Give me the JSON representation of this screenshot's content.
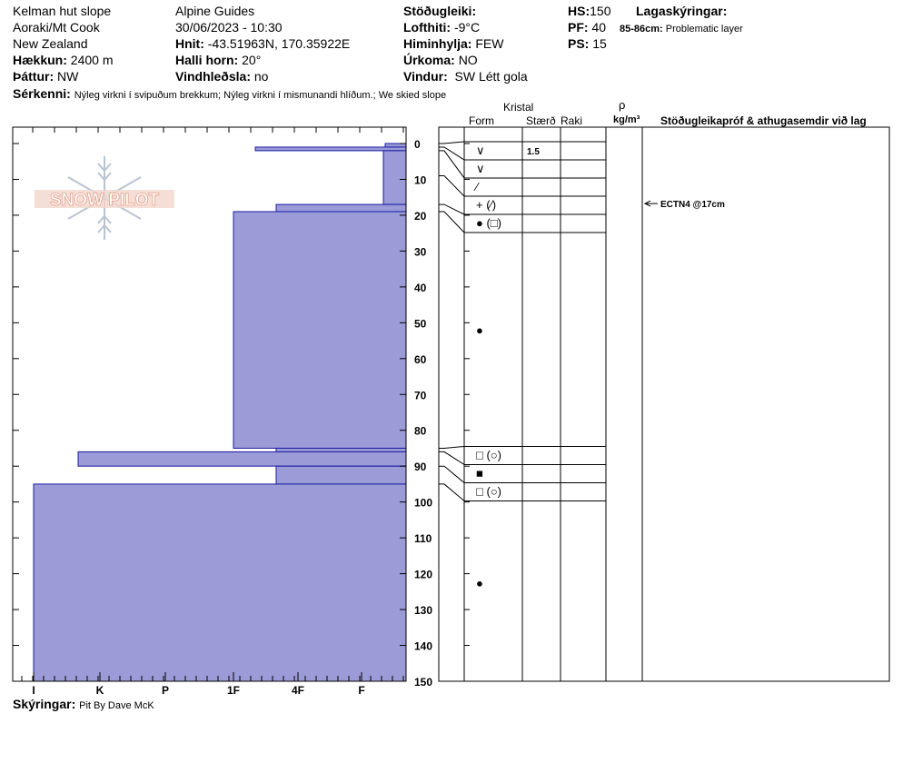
{
  "header": {
    "location": "Kelman hut slope",
    "region": "Aoraki/Mt Cook",
    "country": "New Zealand",
    "elevation_label": "Hækkun:",
    "elevation_value": "2400 m",
    "aspect_label": "Þáttur:",
    "aspect_value": "NW",
    "observer": "Alpine  Guides",
    "datetime": "30/06/2023 - 10:30",
    "coords_label": "Hnit:",
    "coords_value": "-43.51963N, 170.35922E",
    "slope_label": "Halli horn:",
    "slope_value": "20°",
    "wind_loading_label": "Vindhleðsla:",
    "wind_loading_value": "no",
    "stability_label": "Stöðugleiki:",
    "air_temp_label": "Lofthiti:",
    "air_temp_value": "-9°C",
    "sky_label": "Himinhylja:",
    "sky_value": "FEW",
    "precip_label": "Úrkoma:",
    "precip_value": "NO",
    "wind_label": "Vindur:",
    "wind_value": "SW Létt gola",
    "hs_label": "HS:",
    "hs_value": "150",
    "pf_label": "PF:",
    "pf_value": "40",
    "ps_label": "PS:",
    "ps_value": "15",
    "layer_notes_label": "Lagaskýringar:",
    "layer_note_range": "85-86cm:",
    "layer_note_text": "Problematic layer",
    "features_label": "Sérkenni:",
    "features_value": "Nýleg virkni í svipuðum brekkum; Nýleg virkni í mismunandi hlíðum.; We skied slope"
  },
  "footer": {
    "notes_label": "Skýringar:",
    "notes_value": "Pit By Dave McK"
  },
  "logo": {
    "text": "SNOW PILOT"
  },
  "columns": {
    "crystal": "Kristal",
    "form": "Form",
    "size": "Stærð",
    "moisture": "Raki",
    "density_symbol": "ρ",
    "density_unit": "kg/m³",
    "tests": "Stöðugleikapróf & athugasemdir við lag"
  },
  "chart_data": {
    "type": "bar",
    "orientation": "horizontal",
    "yaxis": {
      "range": [
        0,
        150
      ],
      "inverted": true,
      "ticks": [
        0,
        10,
        20,
        30,
        40,
        50,
        60,
        70,
        80,
        90,
        100,
        110,
        120,
        130,
        140,
        150
      ],
      "unit": "cm"
    },
    "xaxis": {
      "hardness_scale": [
        "I",
        "K",
        "P",
        "1F",
        "4F",
        "F"
      ],
      "reversed": true
    },
    "hardness_layers": [
      {
        "top": 0,
        "bottom": 1,
        "hardness": "F"
      },
      {
        "top": 1,
        "bottom": 2,
        "hardness": "1F+"
      },
      {
        "top": 2,
        "bottom": 17,
        "hardness": "F+"
      },
      {
        "top": 17,
        "bottom": 19,
        "hardness": "4F-"
      },
      {
        "top": 19,
        "bottom": 85,
        "hardness": "1F"
      },
      {
        "top": 85,
        "bottom": 86,
        "hardness": "4F-"
      },
      {
        "top": 86,
        "bottom": 90,
        "hardness": "K-"
      },
      {
        "top": 90,
        "bottom": 95,
        "hardness": "4F-"
      },
      {
        "top": 95,
        "bottom": 150,
        "hardness": "I"
      }
    ],
    "grain_layers": [
      {
        "top": 0,
        "bottom": 1,
        "form": "∨",
        "size": "1.5"
      },
      {
        "top": 1,
        "bottom": 2,
        "form": "∨",
        "size": ""
      },
      {
        "top": 2,
        "bottom": 9,
        "form": "⁄",
        "size": ""
      },
      {
        "top": 9,
        "bottom": 17,
        "form": "+ (⁄)",
        "size": ""
      },
      {
        "top": 17,
        "bottom": 19,
        "form": "● (□)",
        "size": ""
      },
      {
        "top": 19,
        "bottom": 85,
        "form": "●",
        "size": ""
      },
      {
        "top": 85,
        "bottom": 86,
        "form": "□ (○)",
        "size": ""
      },
      {
        "top": 86,
        "bottom": 90,
        "form": "■",
        "size": ""
      },
      {
        "top": 90,
        "bottom": 95,
        "form": "□ (○)",
        "size": ""
      },
      {
        "top": 95,
        "bottom": 150,
        "form": "●",
        "size": ""
      }
    ],
    "tests": [
      {
        "depth": 17,
        "label": "ECTN4 @17cm"
      }
    ]
  }
}
